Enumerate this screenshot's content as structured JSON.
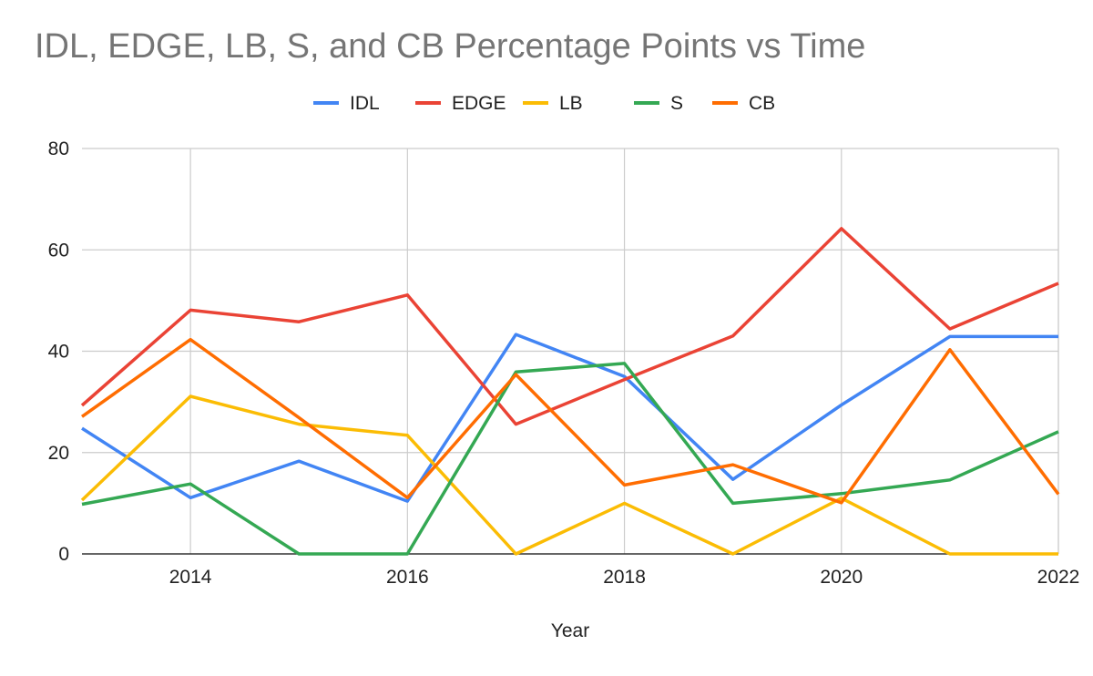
{
  "chart_data": {
    "type": "line",
    "title": "IDL, EDGE, LB, S, and CB Percentage Points vs Time",
    "xlabel": "Year",
    "ylabel": "",
    "xlim": [
      2013,
      2022
    ],
    "ylim": [
      0,
      80
    ],
    "x_ticks": [
      "2014",
      "2016",
      "2018",
      "2020",
      "2022"
    ],
    "y_ticks": [
      "0",
      "20",
      "40",
      "60",
      "80"
    ],
    "grid": true,
    "legend_position": "top",
    "x": [
      2013,
      2014,
      2015,
      2016,
      2017,
      2018,
      2019,
      2020,
      2021,
      2022
    ],
    "series": [
      {
        "name": "IDL",
        "color": "#4285F4",
        "values": [
          24.8,
          11.1,
          18.3,
          10.4,
          43.3,
          35.0,
          14.7,
          29.4,
          42.9,
          42.9
        ]
      },
      {
        "name": "EDGE",
        "color": "#EA4335",
        "values": [
          29.3,
          48.1,
          45.8,
          51.1,
          25.6,
          34.4,
          43.0,
          64.2,
          44.4,
          53.4
        ]
      },
      {
        "name": "LB",
        "color": "#FBBC04",
        "values": [
          10.6,
          31.1,
          25.6,
          23.4,
          0,
          10.0,
          0,
          11.0,
          0,
          0
        ]
      },
      {
        "name": "S",
        "color": "#34A853",
        "values": [
          9.8,
          13.8,
          0,
          0,
          35.9,
          37.6,
          10.0,
          11.9,
          14.6,
          24.1
        ]
      },
      {
        "name": "CB",
        "color": "#FF6D01",
        "values": [
          27.1,
          42.3,
          26.9,
          11.1,
          35.4,
          13.6,
          17.6,
          10.1,
          40.3,
          11.8
        ]
      }
    ]
  }
}
